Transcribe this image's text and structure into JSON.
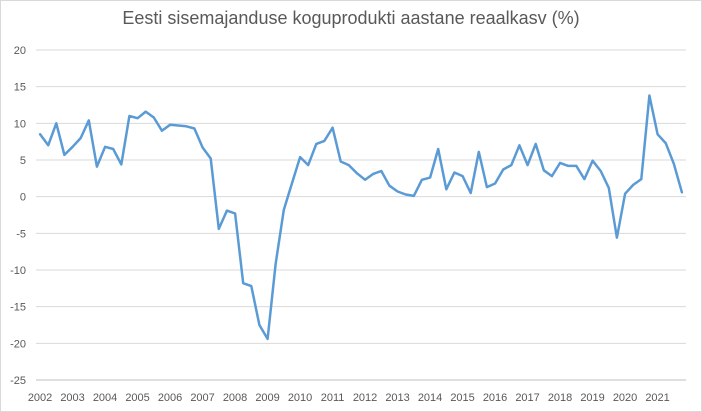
{
  "chart_data": {
    "type": "line",
    "title": "Eesti sisemajanduse koguprodukti aastane reaalkasv (%)",
    "xlabel": "",
    "ylabel": "",
    "ylim": [
      -25,
      20
    ],
    "yticks": [
      20,
      15,
      10,
      5,
      0,
      -5,
      -10,
      -15,
      -20,
      -25
    ],
    "year_labels": [
      "2002",
      "2003",
      "2004",
      "2005",
      "2006",
      "2007",
      "2008",
      "2009",
      "2010",
      "2011",
      "2012",
      "2013",
      "2014",
      "2015",
      "2016",
      "2017",
      "2018",
      "2019",
      "2020",
      "2021"
    ],
    "grid": "horizontal",
    "legend": "none",
    "colors": {
      "series": "#5b9bd5",
      "grid": "#d9d9d9",
      "axis": "#bfbfbf",
      "text": "#595959"
    },
    "series": [
      {
        "values": [
          8.5,
          7.0,
          10.0,
          5.7,
          6.8,
          8.0,
          10.4,
          4.1,
          6.8,
          6.5,
          4.4,
          11.0,
          10.7,
          11.6,
          10.8,
          9.0,
          9.8,
          9.7,
          9.6,
          9.3,
          6.7,
          5.2,
          -4.4,
          -1.9,
          -2.3,
          -11.8,
          -12.2,
          -17.5,
          -19.4,
          -9.1,
          -1.8,
          1.8,
          5.4,
          4.3,
          7.2,
          7.6,
          9.4,
          4.8,
          4.3,
          3.2,
          2.3,
          3.1,
          3.5,
          1.5,
          0.7,
          0.3,
          0.1,
          2.3,
          2.6,
          6.5,
          1.0,
          3.3,
          2.8,
          0.5,
          6.1,
          1.3,
          1.8,
          3.7,
          4.3,
          7.0,
          4.3,
          7.2,
          3.6,
          2.8,
          4.6,
          4.2,
          4.2,
          2.4,
          4.9,
          3.5,
          1.2,
          -5.6,
          0.4,
          1.6,
          2.4,
          13.8,
          8.5,
          7.3,
          4.5,
          0.6
        ]
      }
    ]
  }
}
